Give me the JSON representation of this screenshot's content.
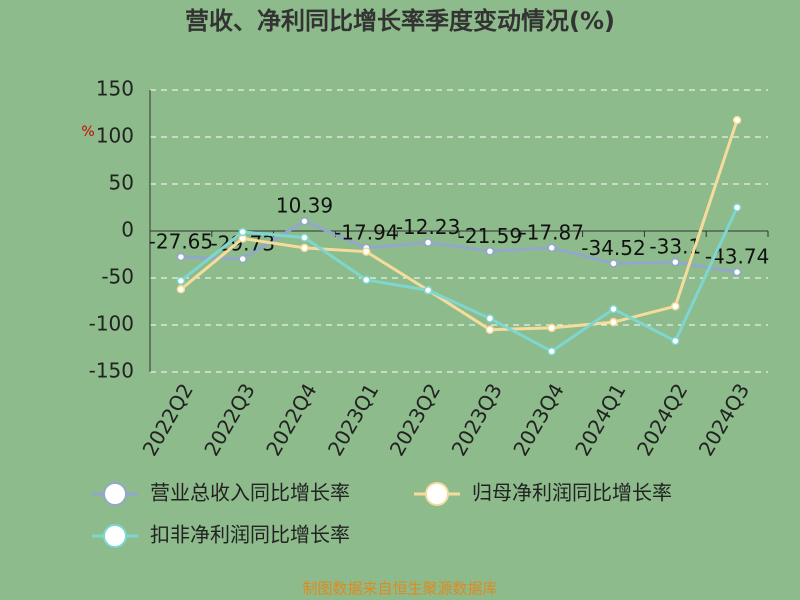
{
  "chart_data": {
    "type": "line",
    "title": "营收、净利同比增长率季度变动情况(%)",
    "unit_label": "%",
    "categories": [
      "2022Q2",
      "2022Q3",
      "2022Q4",
      "2023Q1",
      "2023Q2",
      "2023Q3",
      "2023Q4",
      "2024Q1",
      "2024Q2",
      "2024Q3"
    ],
    "series": [
      {
        "name": "营业总收入同比增长率",
        "color": "#93a6cc",
        "values": [
          -27.65,
          -29.73,
          10.39,
          -17.94,
          -12.23,
          -21.59,
          -17.87,
          -34.52,
          -33.1,
          -43.74
        ]
      },
      {
        "name": "归母净利润同比增长率",
        "color": "#f6dc9c",
        "values": [
          -62,
          -8,
          -18,
          -22,
          -63,
          -105,
          -103,
          -97,
          -80,
          118
        ]
      },
      {
        "name": "扣非净利润同比增长率",
        "color": "#7ed6d0",
        "values": [
          -53,
          -1,
          -7,
          -52,
          -63,
          -93,
          -128,
          -83,
          -117,
          25
        ]
      }
    ],
    "ylim": [
      -150,
      150
    ],
    "yticks": [
      -150,
      -100,
      -50,
      0,
      50,
      100,
      150
    ],
    "grid": true,
    "footer": "制图数据来自恒生聚源数据库"
  }
}
